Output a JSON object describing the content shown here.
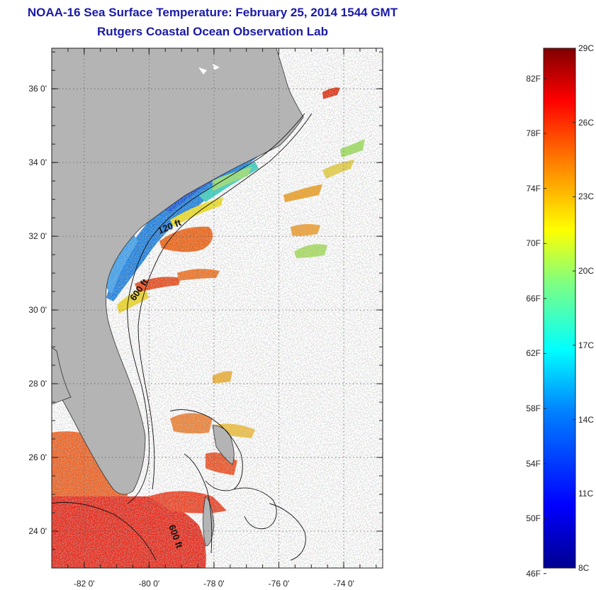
{
  "title": "NOAA-16 Sea Surface Temperature:  February 25, 2014 1544 GMT",
  "subtitle": "Rutgers Coastal Ocean Observation Lab",
  "map": {
    "lat_range": [
      23,
      37.1
    ],
    "lon_range": [
      -83,
      -72.8
    ],
    "lat_ticks": [
      "36 0'",
      "34 0'",
      "32 0'",
      "30 0'",
      "28 0'",
      "26 0'",
      "24 0'"
    ],
    "lon_ticks": [
      "-82 0'",
      "-80 0'",
      "-78 0'",
      "-76 0'",
      "-74 0'"
    ],
    "grid": "dotted",
    "land_color": "#b4b4b4",
    "contour_labels": [
      "120 ft",
      "600 ft",
      "600 ft"
    ]
  },
  "colorbar": {
    "fahrenheit": [
      "82F",
      "78F",
      "74F",
      "70F",
      "66F",
      "62F",
      "58F",
      "54F",
      "50F",
      "46F"
    ],
    "celsius": [
      "29C",
      "26C",
      "23C",
      "20C",
      "17C",
      "14C",
      "11C",
      "8C"
    ],
    "range_c": [
      8,
      29
    ],
    "colors": [
      "#00008f",
      "#0000ff",
      "#0080ff",
      "#00ffff",
      "#80ff80",
      "#ffff00",
      "#ff8000",
      "#ff0000",
      "#800000"
    ]
  }
}
